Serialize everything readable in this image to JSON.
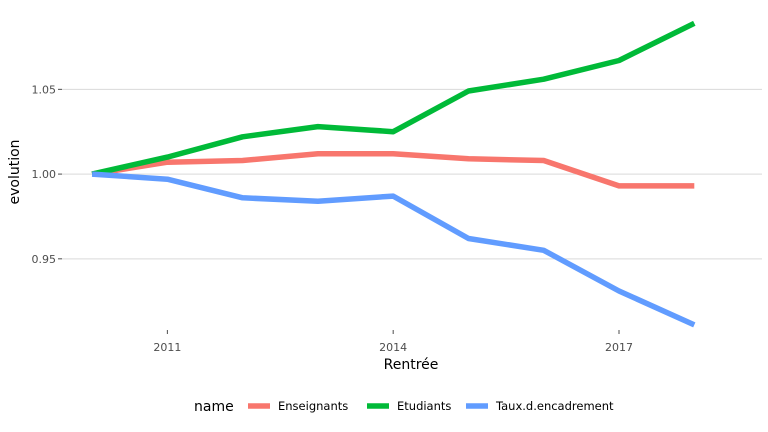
{
  "chart_data": {
    "type": "line",
    "xlabel": "Rentrée",
    "ylabel": "evolution",
    "x": [
      2010,
      2011,
      2012,
      2013,
      2014,
      2015,
      2016,
      2017,
      2018
    ],
    "xlim": [
      2009.6,
      2018.9
    ],
    "ylim": [
      0.908,
      1.098
    ],
    "x_ticks": [
      2011,
      2014,
      2017
    ],
    "y_ticks": [
      0.95,
      1.0,
      1.05
    ],
    "y_tick_labels": [
      "0.95",
      "1.00",
      "1.05"
    ],
    "x_tick_labels": [
      "2011",
      "2014",
      "2017"
    ],
    "grid": "horizontal",
    "legend": {
      "title": "name",
      "placement": "bottom"
    },
    "series": [
      {
        "name": "Enseignants",
        "color": "#F8766D",
        "values": [
          1.0,
          1.007,
          1.008,
          1.012,
          1.012,
          1.009,
          1.008,
          0.993,
          0.993
        ]
      },
      {
        "name": "Etudiants",
        "color": "#00BA38",
        "values": [
          1.0,
          1.01,
          1.022,
          1.028,
          1.025,
          1.049,
          1.056,
          1.067,
          1.089
        ]
      },
      {
        "name": "Taux.d.encadrement",
        "color": "#619CFF",
        "values": [
          1.0,
          0.997,
          0.986,
          0.984,
          0.987,
          0.962,
          0.955,
          0.931,
          0.911
        ]
      }
    ]
  }
}
